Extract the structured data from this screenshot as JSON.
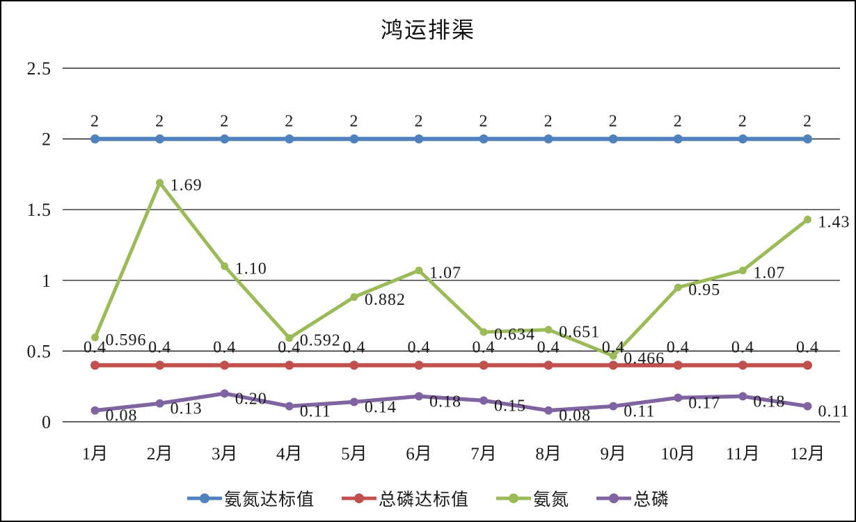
{
  "chart_data": {
    "type": "line",
    "title": "鸿运排渠",
    "categories": [
      "1月",
      "2月",
      "3月",
      "4月",
      "5月",
      "6月",
      "7月",
      "8月",
      "9月",
      "10月",
      "11月",
      "12月"
    ],
    "y_axis": {
      "min": 0,
      "max": 2.5,
      "ticks": [
        0,
        0.5,
        1,
        1.5,
        2,
        2.5
      ],
      "tick_labels": [
        "0",
        "0.5",
        "1",
        "1.5",
        "2",
        "2.5"
      ]
    },
    "grid": "horizontal",
    "legend_position": "bottom",
    "series": [
      {
        "name": "氨氮达标值",
        "color": "#4F81BD",
        "values": [
          2,
          2,
          2,
          2,
          2,
          2,
          2,
          2,
          2,
          2,
          2,
          2
        ],
        "labels": [
          "2",
          "2",
          "2",
          "2",
          "2",
          "2",
          "2",
          "2",
          "2",
          "2",
          "2",
          "2"
        ],
        "label_position": "above"
      },
      {
        "name": "总磷达标值",
        "color": "#C0504D",
        "values": [
          0.4,
          0.4,
          0.4,
          0.4,
          0.4,
          0.4,
          0.4,
          0.4,
          0.4,
          0.4,
          0.4,
          0.4
        ],
        "labels": [
          "0.4",
          "0.4",
          "0.4",
          "0.4",
          "0.4",
          "0.4",
          "0.4",
          "0.4",
          "0.4",
          "0.4",
          "0.4",
          "0.4"
        ],
        "label_position": "above"
      },
      {
        "name": "氨氮",
        "color": "#9BBB59",
        "values": [
          0.596,
          1.69,
          1.1,
          0.592,
          0.882,
          1.07,
          0.634,
          0.651,
          0.466,
          0.95,
          1.07,
          1.43
        ],
        "labels": [
          "0.596",
          "1.69",
          "1.10",
          "0.592",
          "0.882",
          "1.07",
          "0.634",
          "0.651",
          "0.466",
          "0.95",
          "1.07",
          "1.43"
        ],
        "label_position": "right"
      },
      {
        "name": "总磷",
        "color": "#8064A2",
        "values": [
          0.08,
          0.13,
          0.2,
          0.11,
          0.14,
          0.18,
          0.15,
          0.08,
          0.11,
          0.17,
          0.18,
          0.11
        ],
        "labels": [
          "0.08",
          "0.13",
          "0.20",
          "0.11",
          "0.14",
          "0.18",
          "0.15",
          "0.08",
          "0.11",
          "0.17",
          "0.18",
          "0.11"
        ],
        "label_position": "right"
      }
    ]
  }
}
